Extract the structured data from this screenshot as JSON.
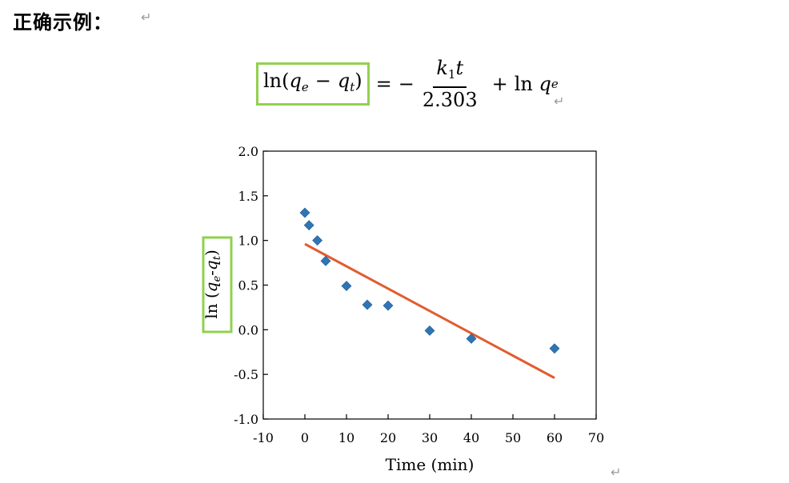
{
  "heading": "正确示例：",
  "return_mark": "↵",
  "formula": {
    "lhs": "ln(",
    "lhs_q": "q",
    "lhs_e": "e",
    "lhs_minus": "−",
    "lhs_q2": "q",
    "lhs_t": "t",
    "lhs_close": ")",
    "equals": "=",
    "neg": "−",
    "num_k": "k",
    "num_1": "1",
    "num_t": "t",
    "den": "2.303",
    "plus": "+",
    "ln": "ln",
    "q": "q",
    "q_sub": "e"
  },
  "highlight_color": "#92d050",
  "chart_data": {
    "type": "scatter",
    "xlabel": "Time (min)",
    "ylabel": "ln (qe-qt)",
    "ylabel_parts": {
      "pre": "ln (",
      "q1": "q",
      "s1": "e",
      "dash": "-",
      "q2": "q",
      "s2": "t",
      "post": ")"
    },
    "xlim": [
      -10,
      70
    ],
    "ylim": [
      -1.0,
      2.0
    ],
    "xticks": [
      "-10",
      "0",
      "10",
      "20",
      "30",
      "40",
      "50",
      "60",
      "70"
    ],
    "yticks": [
      "2.0",
      "1.5",
      "1.0",
      "0.5",
      "0.0",
      "-0.5",
      "-1.0"
    ],
    "series": [
      {
        "type": "scatter",
        "marker": "diamond",
        "color": "#2e75b6",
        "points": [
          [
            0,
            1.31
          ],
          [
            1,
            1.17
          ],
          [
            3,
            1.0
          ],
          [
            5,
            0.77
          ],
          [
            10,
            0.49
          ],
          [
            15,
            0.28
          ],
          [
            20,
            0.27
          ],
          [
            30,
            -0.01
          ],
          [
            40,
            -0.1
          ],
          [
            60,
            -0.21
          ]
        ]
      },
      {
        "type": "line",
        "color": "#e15c2f",
        "points": [
          [
            0,
            0.96
          ],
          [
            60,
            -0.54
          ]
        ]
      }
    ],
    "grid": false
  }
}
